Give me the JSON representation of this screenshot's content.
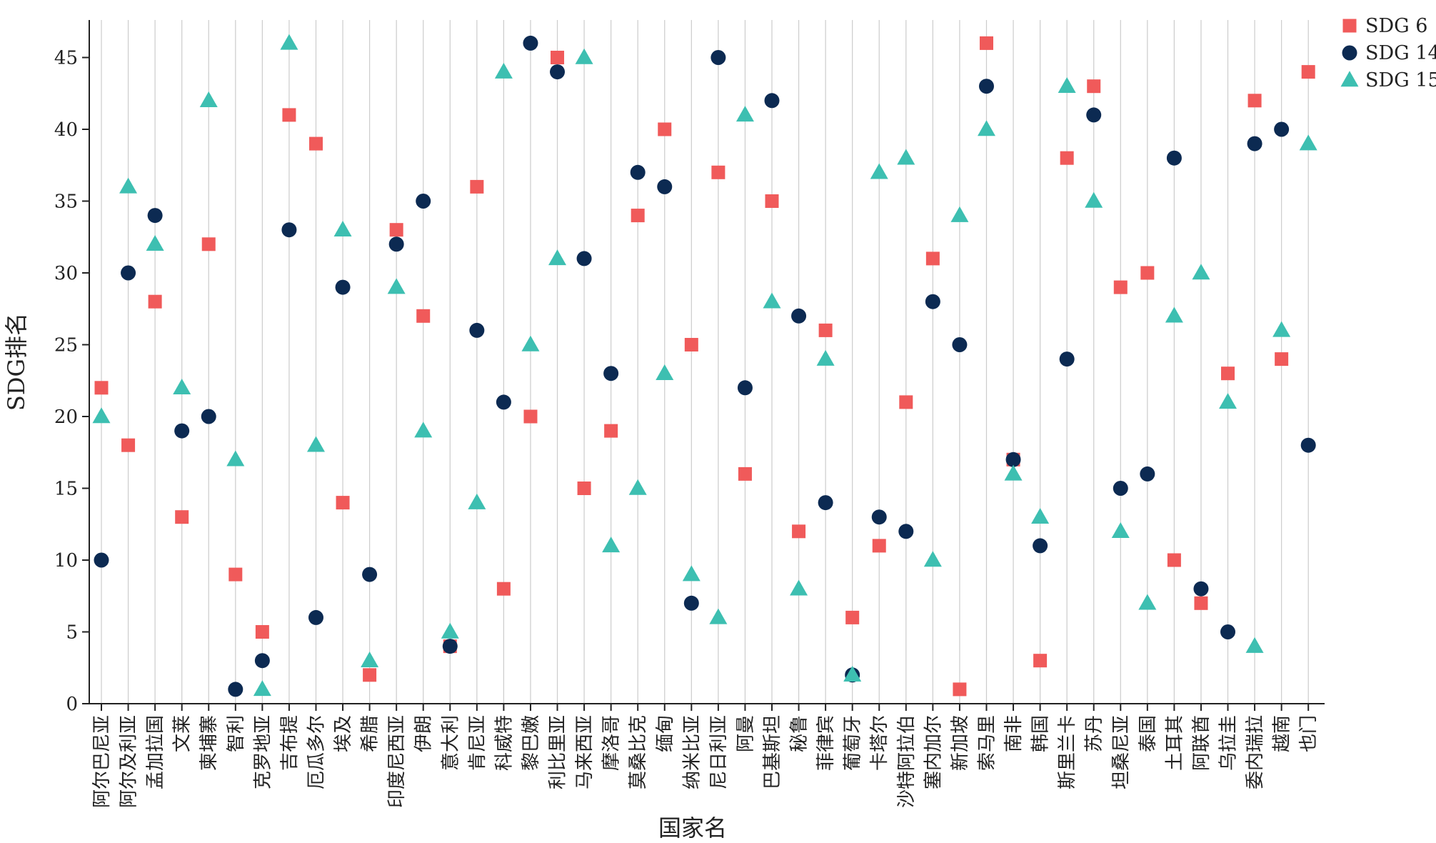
{
  "chart_data": {
    "type": "scatter",
    "xlabel": "国家名",
    "ylabel": "SDG排名",
    "ylim": [
      0,
      48
    ],
    "yticks": [
      0,
      5,
      10,
      15,
      20,
      25,
      30,
      35,
      40,
      45
    ],
    "grid": "vertical",
    "legend_position": "top-right",
    "categories": [
      "阿尔巴尼亚",
      "阿尔及利亚",
      "孟加拉国",
      "文莱",
      "柬埔寨",
      "智利",
      "克罗地亚",
      "吉布提",
      "厄瓜多尔",
      "埃及",
      "希腊",
      "印度尼西亚",
      "伊朗",
      "意大利",
      "肯尼亚",
      "科威特",
      "黎巴嫩",
      "利比里亚",
      "马来西亚",
      "摩洛哥",
      "莫桑比克",
      "缅甸",
      "纳米比亚",
      "尼日利亚",
      "阿曼",
      "巴基斯坦",
      "秘鲁",
      "菲律宾",
      "葡萄牙",
      "卡塔尔",
      "沙特阿拉伯",
      "塞内加尔",
      "新加坡",
      "索马里",
      "南非",
      "韩国",
      "斯里兰卡",
      "苏丹",
      "坦桑尼亚",
      "泰国",
      "土耳其",
      "阿联酋",
      "乌拉圭",
      "委内瑞拉",
      "越南",
      "也门"
    ],
    "series": [
      {
        "name": "SDG 6",
        "marker": "square",
        "color": "#f05a5a",
        "values": [
          22,
          18,
          28,
          13,
          32,
          9,
          5,
          41,
          39,
          14,
          2,
          33,
          27,
          4,
          36,
          8,
          20,
          45,
          15,
          19,
          34,
          40,
          25,
          37,
          16,
          35,
          12,
          26,
          6,
          11,
          21,
          31,
          1,
          46,
          17,
          3,
          38,
          43,
          29,
          30,
          10,
          7,
          23,
          42,
          24,
          44
        ]
      },
      {
        "name": "SDG 14",
        "marker": "circle",
        "color": "#0c2a52",
        "values": [
          10,
          30,
          34,
          19,
          20,
          1,
          3,
          33,
          6,
          29,
          9,
          32,
          35,
          4,
          26,
          21,
          46,
          44,
          31,
          23,
          37,
          36,
          7,
          45,
          22,
          42,
          27,
          14,
          2,
          13,
          12,
          28,
          25,
          43,
          17,
          11,
          24,
          41,
          15,
          16,
          38,
          8,
          5,
          39,
          40,
          18
        ]
      },
      {
        "name": "SDG 15",
        "marker": "triangle",
        "color": "#3dbfb1",
        "values": [
          20,
          36,
          32,
          22,
          42,
          17,
          1,
          46,
          18,
          33,
          3,
          29,
          19,
          5,
          14,
          44,
          25,
          31,
          45,
          11,
          15,
          23,
          9,
          6,
          41,
          28,
          8,
          24,
          2,
          37,
          38,
          10,
          34,
          40,
          16,
          13,
          43,
          35,
          12,
          7,
          27,
          30,
          21,
          4,
          26,
          39
        ]
      }
    ]
  }
}
